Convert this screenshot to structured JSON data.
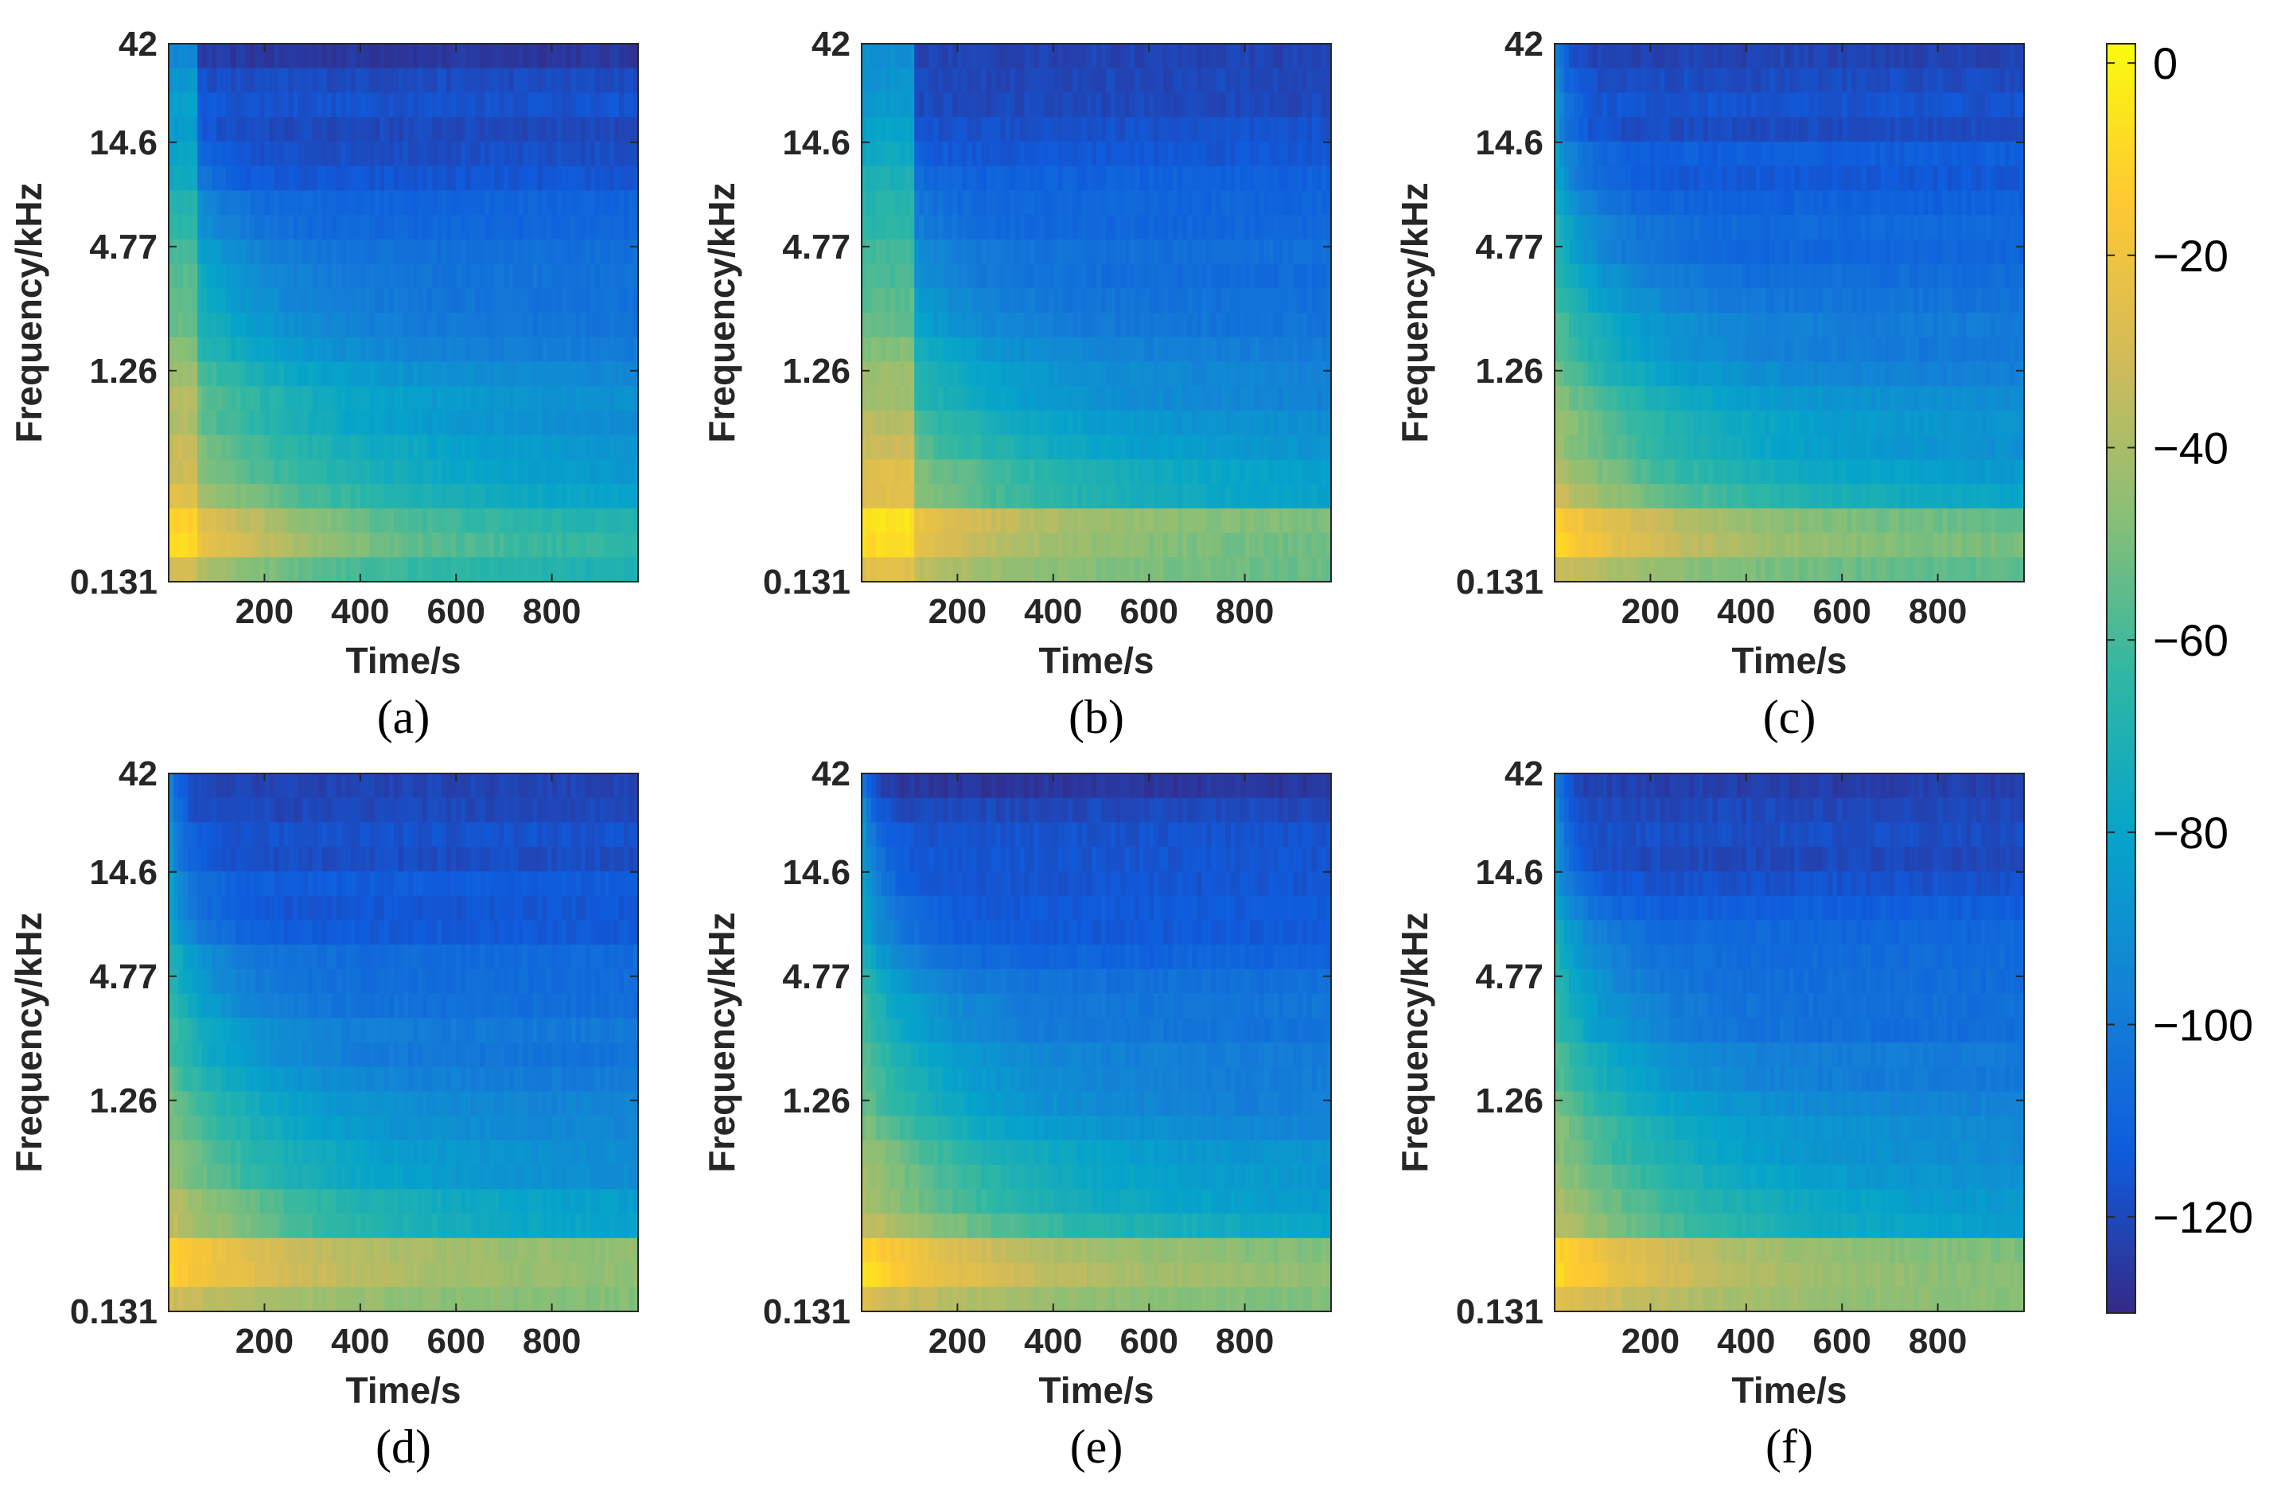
{
  "chart_data": [
    {
      "type": "heatmap",
      "panel": "(a)",
      "xlabel": "Time/s",
      "ylabel": "Frequency/kHz",
      "xticks": [
        200,
        400,
        600,
        800
      ],
      "yticks": [
        "42",
        "14.6",
        "4.77",
        "1.26",
        "0.131"
      ],
      "xlim": [
        0,
        980
      ],
      "ylim": [
        0.131,
        42
      ],
      "yscale": "log",
      "colormap": "parula",
      "profile": {
        "peak_onset": -12,
        "band_floor": -72,
        "decay": 1.0,
        "early_slow_cutoff": 60
      }
    },
    {
      "type": "heatmap",
      "panel": "(b)",
      "xlabel": "Time/s",
      "ylabel": "Frequency/kHz",
      "xticks": [
        200,
        400,
        600,
        800
      ],
      "yticks": [
        "42",
        "14.6",
        "4.77",
        "1.26",
        "0.131"
      ],
      "xlim": [
        0,
        980
      ],
      "ylim": [
        0.131,
        42
      ],
      "yscale": "log",
      "colormap": "parula",
      "profile": {
        "peak_onset": -10,
        "band_floor": -55,
        "decay": 0.9,
        "early_slow_cutoff": 110
      }
    },
    {
      "type": "heatmap",
      "panel": "(c)",
      "xlabel": "Time/s",
      "ylabel": "Frequency/kHz",
      "xticks": [
        200,
        400,
        600,
        800
      ],
      "yticks": [
        "42",
        "14.6",
        "4.77",
        "1.26",
        "0.131"
      ],
      "xlim": [
        0,
        980
      ],
      "ylim": [
        0.131,
        42
      ],
      "yscale": "log",
      "colormap": "parula",
      "profile": {
        "peak_onset": -12,
        "band_floor": -55,
        "decay": 0.85,
        "early_slow_cutoff": 0
      }
    },
    {
      "type": "heatmap",
      "panel": "(d)",
      "xlabel": "Time/s",
      "ylabel": "Frequency/kHz",
      "xticks": [
        200,
        400,
        600,
        800
      ],
      "yticks": [
        "42",
        "14.6",
        "4.77",
        "1.26",
        "0.131"
      ],
      "xlim": [
        0,
        980
      ],
      "ylim": [
        0.131,
        42
      ],
      "yscale": "log",
      "colormap": "parula",
      "profile": {
        "peak_onset": -14,
        "band_floor": -50,
        "decay": 0.85,
        "early_slow_cutoff": 0
      }
    },
    {
      "type": "heatmap",
      "panel": "(e)",
      "xlabel": "Time/s",
      "ylabel": "Frequency/kHz",
      "xticks": [
        200,
        400,
        600,
        800
      ],
      "yticks": [
        "42",
        "14.6",
        "4.77",
        "1.26",
        "0.131"
      ],
      "xlim": [
        0,
        980
      ],
      "ylim": [
        0.131,
        42
      ],
      "yscale": "log",
      "colormap": "parula",
      "profile": {
        "peak_onset": -8,
        "band_floor": -50,
        "decay": 0.9,
        "early_slow_cutoff": 0
      }
    },
    {
      "type": "heatmap",
      "panel": "(f)",
      "xlabel": "Time/s",
      "ylabel": "Frequency/kHz",
      "xticks": [
        200,
        400,
        600,
        800
      ],
      "yticks": [
        "42",
        "14.6",
        "4.77",
        "1.26",
        "0.131"
      ],
      "xlim": [
        0,
        980
      ],
      "ylim": [
        0.131,
        42
      ],
      "yscale": "log",
      "colormap": "parula",
      "profile": {
        "peak_onset": -8,
        "band_floor": -50,
        "decay": 0.85,
        "early_slow_cutoff": 0
      }
    }
  ],
  "colorbar": {
    "range": [
      -130,
      2
    ],
    "ticks": [
      0,
      -20,
      -40,
      -60,
      -80,
      -100,
      -120
    ],
    "tick_labels": [
      "0",
      "−20",
      "−40",
      "−60",
      "−80",
      "−100",
      "−120"
    ]
  },
  "colormap_stops": [
    "#352a87",
    "#0f5cdd",
    "#1481d6",
    "#06a4ca",
    "#2eb7a4",
    "#87bf77",
    "#d1bb59",
    "#fec832",
    "#f9fb0e"
  ]
}
